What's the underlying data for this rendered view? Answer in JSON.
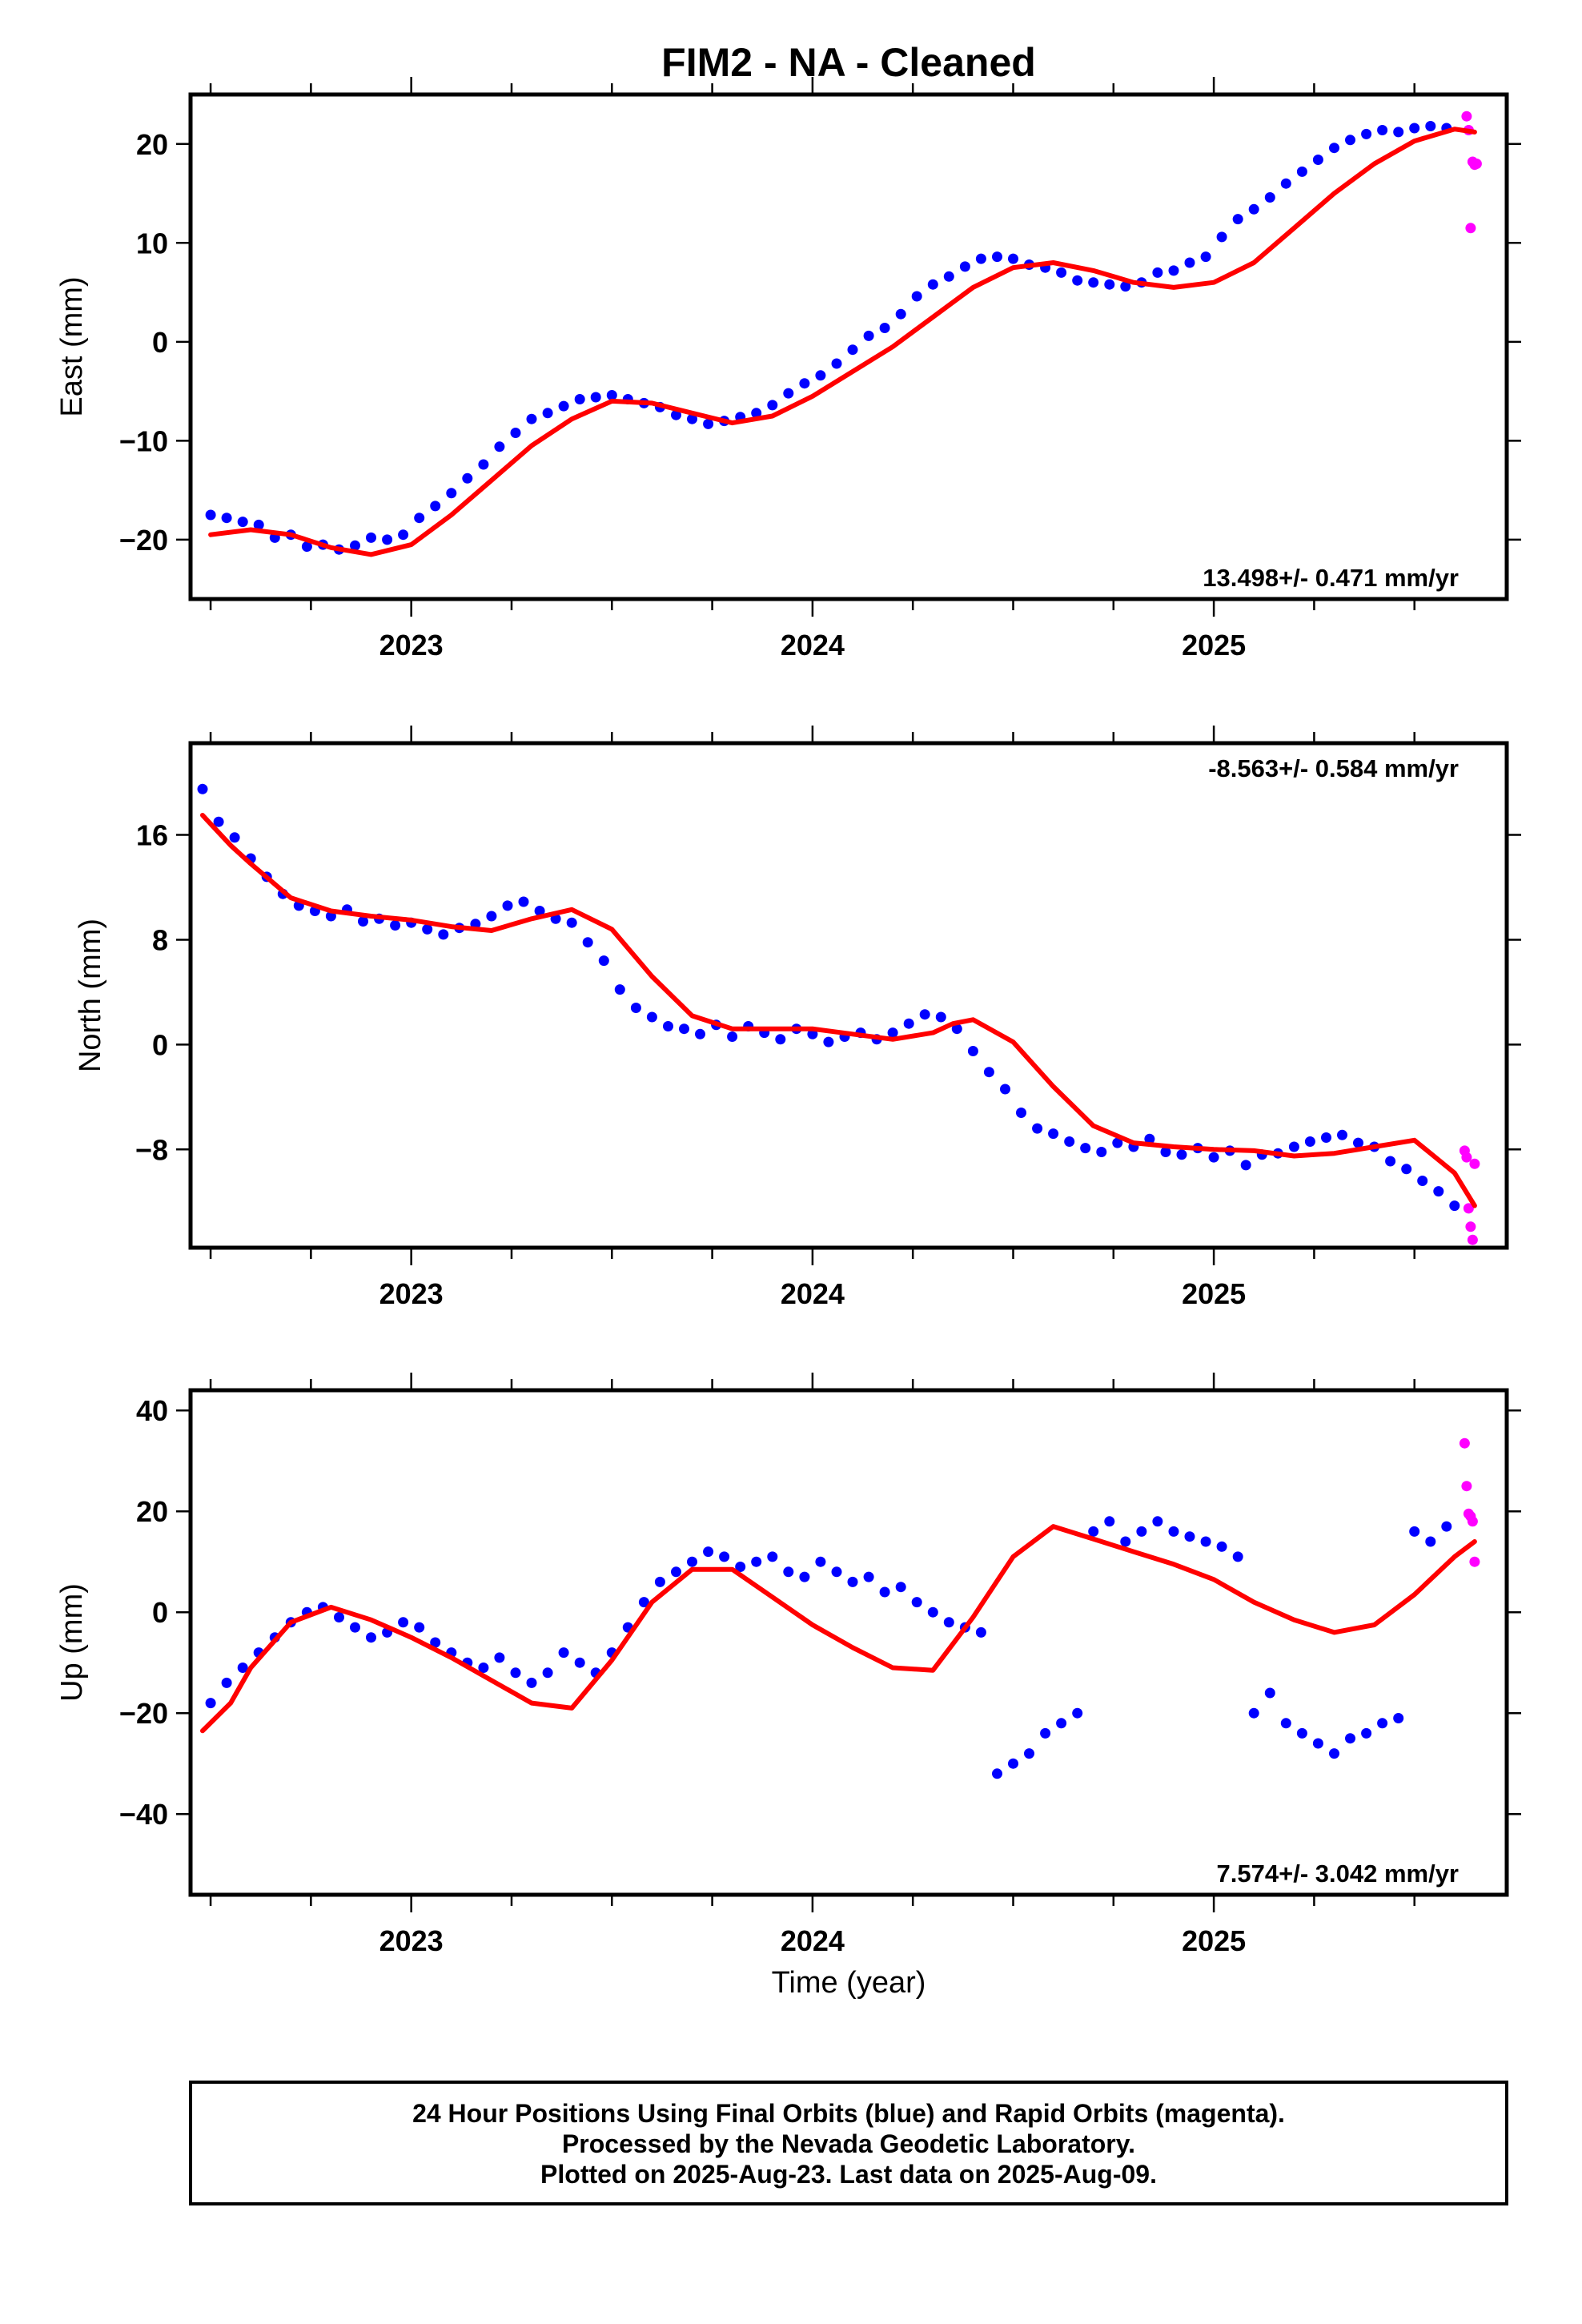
{
  "title": "FIM2  - NA - Cleaned",
  "x_axis": {
    "label": "Time (year)",
    "range": [
      2022.45,
      2025.73
    ],
    "ticks": [
      "2023",
      "2024",
      "2025"
    ]
  },
  "legend_box": {
    "line1": "24 Hour Positions Using Final Orbits (blue) and Rapid Orbits (magenta).",
    "line2": "Processed by the Nevada Geodetic Laboratory.",
    "line3": "Plotted on 2025-Aug-23. Last data on 2025-Aug-09."
  },
  "colors": {
    "final_orbits": "#0000ff",
    "rapid_orbits": "#ff00ff",
    "model": "#ff0000",
    "frame": "#000000"
  },
  "chart_data": [
    {
      "type": "scatter",
      "panel": "east",
      "ylabel": "East (mm)",
      "ylim": [
        -26,
        25
      ],
      "yticks": [
        -20,
        -10,
        0,
        10,
        20
      ],
      "rate_label": "13.498+/- 0.471 mm/yr",
      "rate_position": "bottom-right",
      "x_ticks": [
        "2023",
        "2024",
        "2025"
      ],
      "series": [
        {
          "name": "Final Orbits",
          "color": "#0000ff",
          "x": [
            2022.5,
            2022.54,
            2022.58,
            2022.62,
            2022.66,
            2022.7,
            2022.74,
            2022.78,
            2022.82,
            2022.86,
            2022.9,
            2022.94,
            2022.98,
            2023.02,
            2023.06,
            2023.1,
            2023.14,
            2023.18,
            2023.22,
            2023.26,
            2023.3,
            2023.34,
            2023.38,
            2023.42,
            2023.46,
            2023.5,
            2023.54,
            2023.58,
            2023.62,
            2023.66,
            2023.7,
            2023.74,
            2023.78,
            2023.82,
            2023.86,
            2023.9,
            2023.94,
            2023.98,
            2024.02,
            2024.06,
            2024.1,
            2024.14,
            2024.18,
            2024.22,
            2024.26,
            2024.3,
            2024.34,
            2024.38,
            2024.42,
            2024.46,
            2024.5,
            2024.54,
            2024.58,
            2024.62,
            2024.66,
            2024.7,
            2024.74,
            2024.78,
            2024.82,
            2024.86,
            2024.9,
            2024.94,
            2024.98,
            2025.02,
            2025.06,
            2025.1,
            2025.14,
            2025.18,
            2025.22,
            2025.26,
            2025.3,
            2025.34,
            2025.38,
            2025.42,
            2025.46,
            2025.5,
            2025.54,
            2025.58
          ],
          "y": [
            -17.5,
            -17.8,
            -18.2,
            -18.5,
            -19.8,
            -19.5,
            -20.7,
            -20.5,
            -21,
            -20.6,
            -19.8,
            -20,
            -19.5,
            -17.8,
            -16.6,
            -15.3,
            -13.8,
            -12.4,
            -10.6,
            -9.2,
            -7.8,
            -7.2,
            -6.5,
            -5.8,
            -5.6,
            -5.4,
            -5.8,
            -6.2,
            -6.6,
            -7.4,
            -7.8,
            -8.3,
            -8,
            -7.6,
            -7.2,
            -6.4,
            -5.2,
            -4.2,
            -3.4,
            -2.2,
            -0.8,
            0.6,
            1.4,
            2.8,
            4.6,
            5.8,
            6.6,
            7.6,
            8.4,
            8.6,
            8.4,
            7.8,
            7.5,
            7,
            6.2,
            6,
            5.8,
            5.6,
            6,
            7,
            7.2,
            8,
            8.6,
            10.6,
            12.4,
            13.4,
            14.6,
            16,
            17.2,
            18.4,
            19.6,
            20.4,
            21,
            21.4,
            21.2,
            21.6,
            21.8,
            21.6
          ]
        },
        {
          "name": "Rapid Orbits",
          "color": "#ff00ff",
          "x": [
            2025.63,
            2025.635,
            2025.64,
            2025.645,
            2025.65,
            2025.655
          ],
          "y": [
            22.8,
            21.4,
            11.5,
            18.2,
            17.9,
            18
          ]
        },
        {
          "name": "Model",
          "color": "#ff0000",
          "x": [
            2022.5,
            2022.6,
            2022.7,
            2022.8,
            2022.9,
            2023.0,
            2023.1,
            2023.2,
            2023.3,
            2023.4,
            2023.5,
            2023.6,
            2023.7,
            2023.8,
            2023.9,
            2024.0,
            2024.1,
            2024.2,
            2024.3,
            2024.4,
            2024.5,
            2024.6,
            2024.7,
            2024.8,
            2024.9,
            2025.0,
            2025.1,
            2025.2,
            2025.3,
            2025.4,
            2025.5,
            2025.6,
            2025.65
          ],
          "y": [
            -19.5,
            -19.0,
            -19.5,
            -20.8,
            -21.5,
            -20.5,
            -17.5,
            -14.0,
            -10.5,
            -7.8,
            -6.0,
            -6.2,
            -7.2,
            -8.2,
            -7.5,
            -5.5,
            -3.0,
            -0.5,
            2.5,
            5.5,
            7.5,
            8.0,
            7.2,
            6.0,
            5.5,
            6.0,
            8.0,
            11.5,
            15.0,
            18.0,
            20.3,
            21.5,
            21.2
          ]
        }
      ]
    },
    {
      "type": "scatter",
      "panel": "north",
      "ylabel": "North (mm)",
      "ylim": [
        -15.5,
        23
      ],
      "yticks": [
        -8,
        0,
        8,
        16
      ],
      "rate_label": "-8.563+/- 0.584 mm/yr",
      "rate_position": "top-right",
      "x_ticks": [
        "2023",
        "2024",
        "2025"
      ],
      "series": [
        {
          "name": "Final Orbits",
          "color": "#0000ff",
          "x": [
            2022.48,
            2022.52,
            2022.56,
            2022.6,
            2022.64,
            2022.68,
            2022.72,
            2022.76,
            2022.8,
            2022.84,
            2022.88,
            2022.92,
            2022.96,
            2023.0,
            2023.04,
            2023.08,
            2023.12,
            2023.16,
            2023.2,
            2023.24,
            2023.28,
            2023.32,
            2023.36,
            2023.4,
            2023.44,
            2023.48,
            2023.52,
            2023.56,
            2023.6,
            2023.64,
            2023.68,
            2023.72,
            2023.76,
            2023.8,
            2023.84,
            2023.88,
            2023.92,
            2023.96,
            2024.0,
            2024.04,
            2024.08,
            2024.12,
            2024.16,
            2024.2,
            2024.24,
            2024.28,
            2024.32,
            2024.36,
            2024.4,
            2024.44,
            2024.48,
            2024.52,
            2024.56,
            2024.6,
            2024.64,
            2024.68,
            2024.72,
            2024.76,
            2024.8,
            2024.84,
            2024.88,
            2024.92,
            2024.96,
            2025.0,
            2025.04,
            2025.08,
            2025.12,
            2025.16,
            2025.2,
            2025.24,
            2025.28,
            2025.32,
            2025.36,
            2025.4,
            2025.44,
            2025.48,
            2025.52,
            2025.56,
            2025.6
          ],
          "y": [
            19.5,
            17,
            15.8,
            14.2,
            12.8,
            11.5,
            10.6,
            10.2,
            9.8,
            10.3,
            9.4,
            9.6,
            9.1,
            9.3,
            8.8,
            8.4,
            8.9,
            9.2,
            9.8,
            10.6,
            10.9,
            10.2,
            9.6,
            9.3,
            7.8,
            6.4,
            4.2,
            2.8,
            2.1,
            1.4,
            1.2,
            0.8,
            1.5,
            0.6,
            1.4,
            0.9,
            0.4,
            1.2,
            0.8,
            0.2,
            0.6,
            0.9,
            0.4,
            0.9,
            1.6,
            2.3,
            2.1,
            1.2,
            -0.5,
            -2.1,
            -3.4,
            -5.2,
            -6.4,
            -6.8,
            -7.4,
            -7.9,
            -8.2,
            -7.5,
            -7.8,
            -7.2,
            -8.2,
            -8.4,
            -7.9,
            -8.6,
            -8.1,
            -9.2,
            -8.4,
            -8.3,
            -7.8,
            -7.4,
            -7.1,
            -6.9,
            -7.5,
            -7.8,
            -8.9,
            -9.5,
            -10.4,
            -11.2,
            -12.3
          ]
        },
        {
          "name": "Rapid Orbits",
          "color": "#ff00ff",
          "x": [
            2025.625,
            2025.63,
            2025.635,
            2025.64,
            2025.645,
            2025.65
          ],
          "y": [
            -8.1,
            -8.6,
            -12.5,
            -13.9,
            -14.9,
            -9.1
          ]
        },
        {
          "name": "Model",
          "color": "#ff0000",
          "x": [
            2022.48,
            2022.55,
            2022.6,
            2022.7,
            2022.8,
            2022.9,
            2023.0,
            2023.1,
            2023.2,
            2023.3,
            2023.4,
            2023.5,
            2023.6,
            2023.7,
            2023.8,
            2023.9,
            2024.0,
            2024.1,
            2024.2,
            2024.3,
            2024.35,
            2024.4,
            2024.5,
            2024.6,
            2024.7,
            2024.8,
            2024.9,
            2025.0,
            2025.1,
            2025.2,
            2025.3,
            2025.4,
            2025.5,
            2025.6,
            2025.65
          ],
          "y": [
            17.5,
            15.2,
            13.8,
            11.2,
            10.2,
            9.8,
            9.5,
            9.0,
            8.7,
            9.6,
            10.3,
            8.8,
            5.2,
            2.2,
            1.2,
            1.2,
            1.2,
            0.8,
            0.4,
            0.9,
            1.6,
            1.9,
            0.2,
            -3.2,
            -6.2,
            -7.5,
            -7.8,
            -8.0,
            -8.1,
            -8.5,
            -8.3,
            -7.8,
            -7.3,
            -9.8,
            -12.3
          ]
        }
      ]
    },
    {
      "type": "scatter",
      "panel": "up",
      "ylabel": "Up (mm)",
      "ylim": [
        -56,
        44
      ],
      "yticks": [
        -40,
        -20,
        0,
        20,
        40
      ],
      "rate_label": "7.574+/- 3.042 mm/yr",
      "rate_position": "bottom-right",
      "x_ticks": [
        "2023",
        "2024",
        "2025"
      ],
      "series": [
        {
          "name": "Final Orbits",
          "color": "#0000ff",
          "x": [
            2022.5,
            2022.54,
            2022.58,
            2022.62,
            2022.66,
            2022.7,
            2022.74,
            2022.78,
            2022.82,
            2022.86,
            2022.9,
            2022.94,
            2022.98,
            2023.02,
            2023.06,
            2023.1,
            2023.14,
            2023.18,
            2023.22,
            2023.26,
            2023.3,
            2023.34,
            2023.38,
            2023.42,
            2023.46,
            2023.5,
            2023.54,
            2023.58,
            2023.62,
            2023.66,
            2023.7,
            2023.74,
            2023.78,
            2023.82,
            2023.86,
            2023.9,
            2023.94,
            2023.98,
            2024.02,
            2024.06,
            2024.1,
            2024.14,
            2024.18,
            2024.22,
            2024.26,
            2024.3,
            2024.34,
            2024.38,
            2024.42,
            2024.46,
            2024.5,
            2024.54,
            2024.58,
            2024.62,
            2024.66,
            2024.7,
            2024.74,
            2024.78,
            2024.82,
            2024.86,
            2024.9,
            2024.94,
            2024.98,
            2025.02,
            2025.06,
            2025.1,
            2025.14,
            2025.18,
            2025.22,
            2025.26,
            2025.3,
            2025.34,
            2025.38,
            2025.42,
            2025.46,
            2025.5,
            2025.54,
            2025.58
          ],
          "y": [
            -18,
            -14,
            -11,
            -8,
            -5,
            -2,
            0,
            1,
            -1,
            -3,
            -5,
            -4,
            -2,
            -3,
            -6,
            -8,
            -10,
            -11,
            -9,
            -12,
            -14,
            -12,
            -8,
            -10,
            -12,
            -8,
            -3,
            2,
            6,
            8,
            10,
            12,
            11,
            9,
            10,
            11,
            8,
            7,
            10,
            8,
            6,
            7,
            4,
            5,
            2,
            0,
            -2,
            -3,
            -4,
            -32,
            -30,
            -28,
            -24,
            -22,
            -20,
            16,
            18,
            14,
            16,
            18,
            16,
            15,
            14,
            13,
            11,
            -20,
            -16,
            -22,
            -24,
            -26,
            -28,
            -25,
            -24,
            -22,
            -21,
            16,
            14,
            17
          ]
        },
        {
          "name": "Rapid Orbits",
          "color": "#ff00ff",
          "x": [
            2025.625,
            2025.63,
            2025.635,
            2025.64,
            2025.645,
            2025.65
          ],
          "y": [
            33.5,
            25,
            19.5,
            19,
            18,
            10
          ]
        },
        {
          "name": "Model",
          "color": "#ff0000",
          "x": [
            2022.48,
            2022.55,
            2022.6,
            2022.7,
            2022.8,
            2022.9,
            2023.0,
            2023.1,
            2023.2,
            2023.3,
            2023.4,
            2023.5,
            2023.6,
            2023.7,
            2023.8,
            2023.9,
            2024.0,
            2024.1,
            2024.2,
            2024.3,
            2024.4,
            2024.5,
            2024.6,
            2024.7,
            2024.8,
            2024.9,
            2025.0,
            2025.1,
            2025.2,
            2025.3,
            2025.4,
            2025.5,
            2025.6,
            2025.65
          ],
          "y": [
            -23.5,
            -18.0,
            -11.0,
            -2.0,
            1.0,
            -1.5,
            -5.0,
            -9.0,
            -13.5,
            -18.0,
            -19.0,
            -9.5,
            2.0,
            8.5,
            8.5,
            3.0,
            -2.5,
            -7.0,
            -11.0,
            -11.5,
            -1.0,
            11.0,
            17.0,
            14.5,
            12.0,
            9.5,
            6.5,
            2.0,
            -1.5,
            -4.0,
            -2.5,
            3.5,
            11.0,
            14.0
          ]
        }
      ]
    }
  ]
}
